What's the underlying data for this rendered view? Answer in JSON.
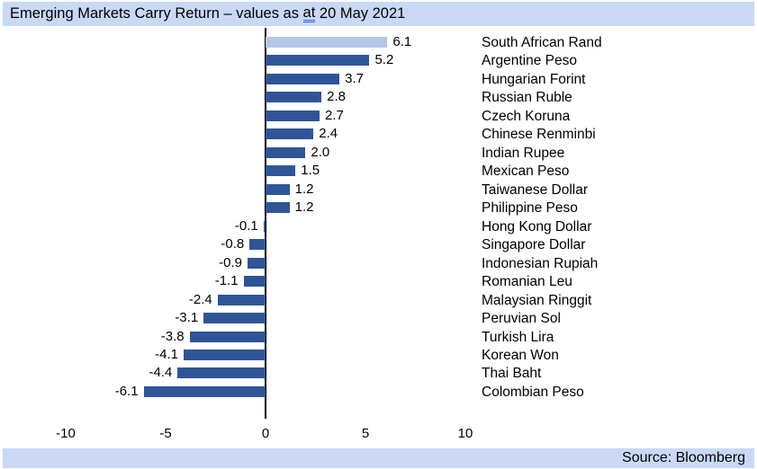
{
  "header": {
    "title_prefix": "Emerging Markets Carry Return – values as ",
    "title_at": "at",
    "title_suffix": " 20 May 2021"
  },
  "footer": {
    "source": "Source: Bloomberg"
  },
  "colors": {
    "band_background": "#c9d8f5",
    "bar_default": "#2f5597",
    "bar_highlight": "#b4c7e7",
    "axis_line": "#000000",
    "grammar_underline": "#2b5fd9"
  },
  "chart_data": {
    "type": "bar",
    "orientation": "horizontal",
    "title": "Emerging Markets Carry Return – values as at 20 May 2021",
    "categories": [
      "South African Rand",
      "Argentine Peso",
      "Hungarian Forint",
      "Russian Ruble",
      "Czech Koruna",
      "Chinese Renminbi",
      "Indian Rupee",
      "Mexican Peso",
      "Taiwanese Dollar",
      "Philippine Peso",
      "Hong Kong Dollar",
      "Singapore Dollar",
      "Indonesian Rupiah",
      "Romanian Leu",
      "Malaysian Ringgit",
      "Peruvian Sol",
      "Turkish Lira",
      "Korean Won",
      "Thai Baht",
      "Colombian Peso"
    ],
    "values": [
      6.1,
      5.2,
      3.7,
      2.8,
      2.7,
      2.4,
      2.0,
      1.5,
      1.2,
      1.2,
      -0.1,
      -0.8,
      -0.9,
      -1.1,
      -2.4,
      -3.1,
      -3.8,
      -4.1,
      -4.4,
      -6.1
    ],
    "value_labels": [
      "6.1",
      "5.2",
      "3.7",
      "2.8",
      "2.7",
      "2.4",
      "2.0",
      "1.5",
      "1.2",
      "1.2",
      "-0.1",
      "-0.8",
      "-0.9",
      "-1.1",
      "-2.4",
      "-3.1",
      "-3.8",
      "-4.1",
      "-4.4",
      "-6.1"
    ],
    "highlight_index": 0,
    "x_ticks": [
      -10,
      -5,
      0,
      5,
      10
    ],
    "x_tick_labels": [
      "-10",
      "-5",
      "0",
      "5",
      "10"
    ],
    "xlabel": "",
    "ylabel": "",
    "grid": false,
    "legend": false,
    "value_labels_shown": true,
    "source": "Source: Bloomberg"
  }
}
